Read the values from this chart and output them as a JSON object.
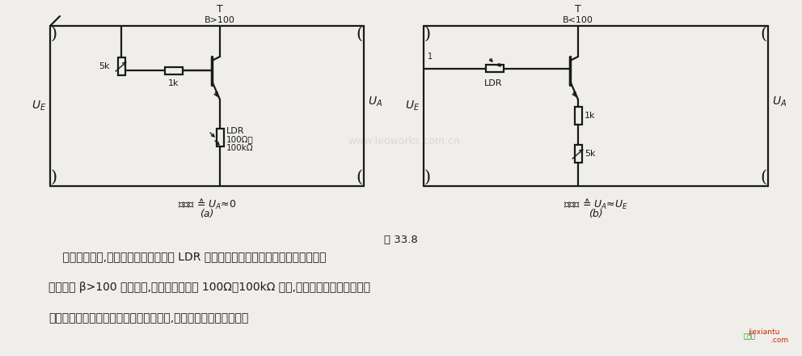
{
  "bg": "#f0eeeb",
  "lc": "#1a1a1a",
  "title": "图 33.8",
  "desc1": "    在有入射光时,该电路中接有光敏电阻 LDR 的晶体管接通高电平或零电平。晶体管放",
  "desc2": "大系数取 β>100 就已足够,光敏电阻阻值在 100Ω～100kΩ 之间,分别对应于有光照射和暗",
  "desc3": "时的情况。如果要想控制较大功率的负载,则应采用达林顿晶体管。",
  "a_T": "T",
  "a_B": "B>100",
  "a_UE": "U_E",
  "a_UA": "U_{A}",
  "a_5k": "5k",
  "a_1k": "1k",
  "a_LDR": "LDR",
  "a_LDR2": "100Ω～",
  "a_LDR3": "100kΩ",
  "a_cap": "光入射 ≙ U_A≈0",
  "a_label": "(a)",
  "b_T": "T",
  "b_B": "B<100",
  "b_UE": "U_E",
  "b_UA": "U_A",
  "b_LDR": "LDR",
  "b_1k": "1k",
  "b_5k": "5k",
  "b_cap": "光入射 ≙ U_A≈U_E",
  "b_label": "(b)",
  "wm_text": "www.leoworks.com.cn",
  "corner1": "jiexiantu",
  "corner2": ".com"
}
